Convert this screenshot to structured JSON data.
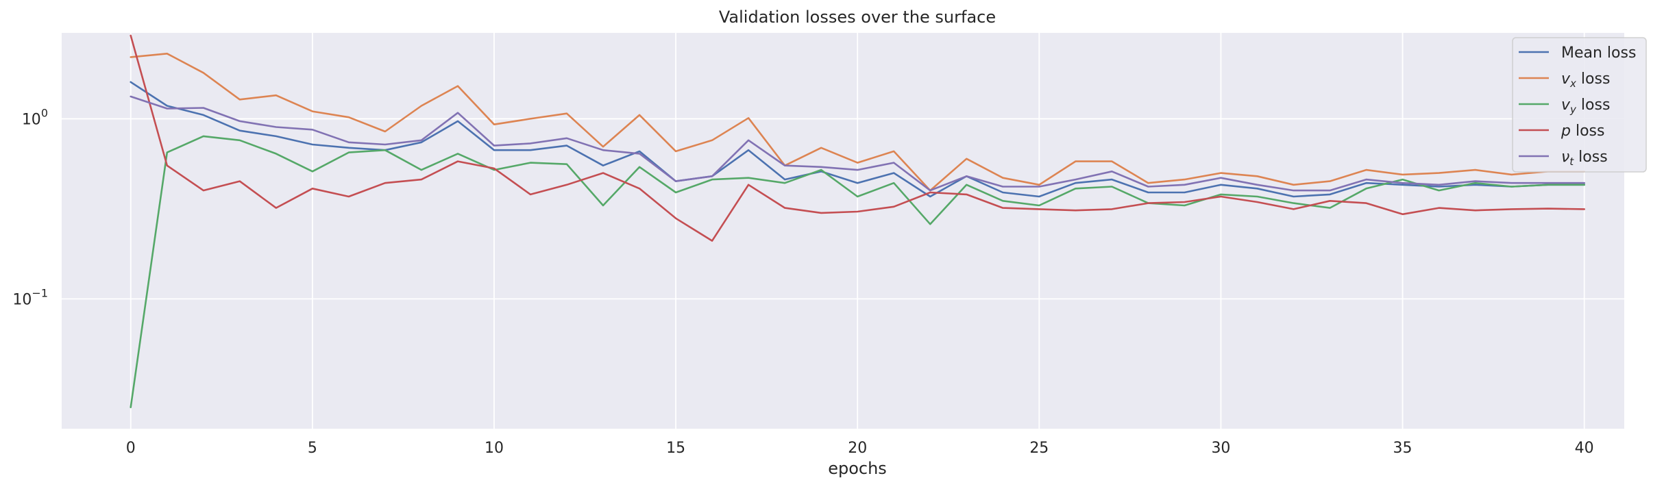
{
  "chart_data": {
    "type": "line",
    "title": "Validation losses over the surface",
    "xlabel": "epochs",
    "ylabel": "",
    "yscale": "log",
    "xlim": [
      -1.9,
      41.1
    ],
    "ylim": [
      0.019,
      3.0
    ],
    "grid": true,
    "legend_position": "top-right",
    "x": [
      0,
      1,
      2,
      3,
      4,
      5,
      6,
      7,
      8,
      9,
      10,
      11,
      12,
      13,
      14,
      15,
      16,
      17,
      18,
      19,
      20,
      21,
      22,
      23,
      24,
      25,
      26,
      27,
      28,
      29,
      30,
      31,
      32,
      33,
      34,
      35,
      36,
      37,
      38,
      39,
      40
    ],
    "xticks": [
      0,
      5,
      10,
      15,
      20,
      25,
      30,
      35,
      40
    ],
    "xtick_labels": [
      "0",
      "5",
      "10",
      "15",
      "20",
      "25",
      "30",
      "35",
      "40"
    ],
    "ytick_labels": [
      {
        "base": "10",
        "exp": "0",
        "value": 1
      },
      {
        "base": "10",
        "exp": "−1",
        "value": 0.1
      }
    ],
    "series": [
      {
        "name": "Mean loss",
        "name_parts": [
          {
            "t": "Mean loss",
            "s": "n"
          }
        ],
        "color": "#4c72b0",
        "values": [
          1.6,
          1.18,
          1.05,
          0.86,
          0.8,
          0.72,
          0.69,
          0.67,
          0.74,
          0.97,
          0.67,
          0.67,
          0.71,
          0.55,
          0.66,
          0.45,
          0.48,
          0.67,
          0.46,
          0.51,
          0.44,
          0.5,
          0.37,
          0.48,
          0.39,
          0.37,
          0.44,
          0.46,
          0.39,
          0.39,
          0.43,
          0.41,
          0.37,
          0.38,
          0.44,
          0.43,
          0.42,
          0.43,
          0.42,
          0.43,
          0.43
        ]
      },
      {
        "name": "v_x loss",
        "name_parts": [
          {
            "t": "v",
            "s": "i"
          },
          {
            "t": "x",
            "s": "sub"
          },
          {
            "t": " loss",
            "s": "n"
          }
        ],
        "color": "#dd8452",
        "values": [
          2.2,
          2.3,
          1.8,
          1.28,
          1.35,
          1.1,
          1.02,
          0.85,
          1.18,
          1.52,
          0.93,
          1.0,
          1.07,
          0.7,
          1.05,
          0.66,
          0.76,
          1.01,
          0.55,
          0.69,
          0.57,
          0.66,
          0.4,
          0.6,
          0.47,
          0.43,
          0.58,
          0.58,
          0.44,
          0.46,
          0.5,
          0.48,
          0.43,
          0.45,
          0.52,
          0.49,
          0.5,
          0.52,
          0.49,
          0.51,
          0.51
        ]
      },
      {
        "name": "v_y loss",
        "name_parts": [
          {
            "t": "v",
            "s": "i"
          },
          {
            "t": "y",
            "s": "sub"
          },
          {
            "t": " loss",
            "s": "n"
          }
        ],
        "color": "#55a868",
        "values": [
          0.025,
          0.65,
          0.8,
          0.76,
          0.64,
          0.51,
          0.65,
          0.67,
          0.52,
          0.64,
          0.52,
          0.57,
          0.56,
          0.33,
          0.54,
          0.39,
          0.46,
          0.47,
          0.44,
          0.52,
          0.37,
          0.44,
          0.26,
          0.43,
          0.35,
          0.33,
          0.41,
          0.42,
          0.34,
          0.33,
          0.38,
          0.37,
          0.34,
          0.32,
          0.41,
          0.46,
          0.4,
          0.44,
          0.42,
          0.43,
          0.43
        ]
      },
      {
        "name": "p loss",
        "name_parts": [
          {
            "t": "p",
            "s": "i"
          },
          {
            "t": " loss",
            "s": "n"
          }
        ],
        "color": "#c44e52",
        "values": [
          2.9,
          0.55,
          0.4,
          0.45,
          0.32,
          0.41,
          0.37,
          0.44,
          0.46,
          0.58,
          0.53,
          0.38,
          0.43,
          0.5,
          0.41,
          0.28,
          0.21,
          0.43,
          0.32,
          0.3,
          0.305,
          0.325,
          0.39,
          0.38,
          0.32,
          0.315,
          0.31,
          0.315,
          0.34,
          0.345,
          0.37,
          0.345,
          0.315,
          0.35,
          0.34,
          0.295,
          0.32,
          0.31,
          0.315,
          0.317,
          0.315
        ]
      },
      {
        "name": "ν_t loss",
        "name_parts": [
          {
            "t": "ν",
            "s": "i"
          },
          {
            "t": "t",
            "s": "sub"
          },
          {
            "t": " loss",
            "s": "n"
          }
        ],
        "color": "#8172b3",
        "values": [
          1.33,
          1.14,
          1.15,
          0.97,
          0.9,
          0.87,
          0.74,
          0.72,
          0.76,
          1.08,
          0.71,
          0.73,
          0.78,
          0.67,
          0.64,
          0.45,
          0.48,
          0.76,
          0.55,
          0.54,
          0.52,
          0.57,
          0.4,
          0.48,
          0.42,
          0.42,
          0.46,
          0.51,
          0.42,
          0.43,
          0.47,
          0.43,
          0.4,
          0.4,
          0.46,
          0.44,
          0.43,
          0.45,
          0.44,
          0.44,
          0.44
        ]
      }
    ]
  }
}
